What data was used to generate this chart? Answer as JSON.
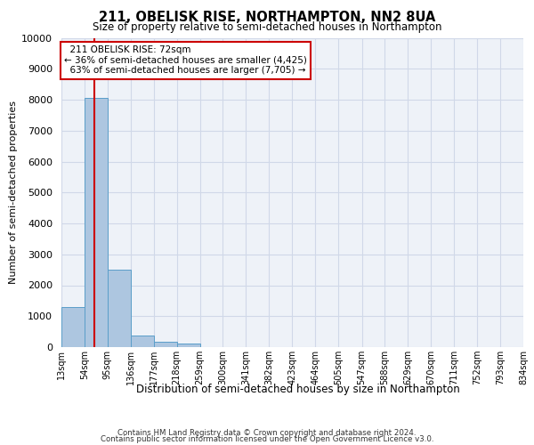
{
  "title": "211, OBELISK RISE, NORTHAMPTON, NN2 8UA",
  "subtitle": "Size of property relative to semi-detached houses in Northampton",
  "xlabel": "Distribution of semi-detached houses by size in Northampton",
  "ylabel": "Number of semi-detached properties",
  "footer_line1": "Contains HM Land Registry data © Crown copyright and database right 2024.",
  "footer_line2": "Contains public sector information licensed under the Open Government Licence v3.0.",
  "bin_labels": [
    "13sqm",
    "54sqm",
    "95sqm",
    "136sqm",
    "177sqm",
    "218sqm",
    "259sqm",
    "300sqm",
    "341sqm",
    "382sqm",
    "423sqm",
    "464sqm",
    "505sqm",
    "547sqm",
    "588sqm",
    "629sqm",
    "670sqm",
    "711sqm",
    "752sqm",
    "793sqm",
    "834sqm"
  ],
  "bar_values": [
    1300,
    8050,
    2500,
    380,
    160,
    120,
    0,
    0,
    0,
    0,
    0,
    0,
    0,
    0,
    0,
    0,
    0,
    0,
    0,
    0
  ],
  "bar_color": "#adc6e0",
  "bar_edge_color": "#5a9ec9",
  "grid_color": "#d0d8e8",
  "background_color": "#eef2f8",
  "property_size": 72,
  "property_label": "211 OBELISK RISE: 72sqm",
  "pct_smaller": 36,
  "pct_smaller_count": "4,425",
  "pct_larger": 63,
  "pct_larger_count": "7,705",
  "marker_line_color": "#cc0000",
  "annotation_box_color": "#ffffff",
  "annotation_box_edge": "#cc0000",
  "ylim": [
    0,
    10000
  ],
  "yticks": [
    0,
    1000,
    2000,
    3000,
    4000,
    5000,
    6000,
    7000,
    8000,
    9000,
    10000
  ],
  "bin_edges": [
    13,
    54,
    95,
    136,
    177,
    218,
    259,
    300,
    341,
    382,
    423,
    464,
    505,
    547,
    588,
    629,
    670,
    711,
    752,
    793,
    834
  ]
}
